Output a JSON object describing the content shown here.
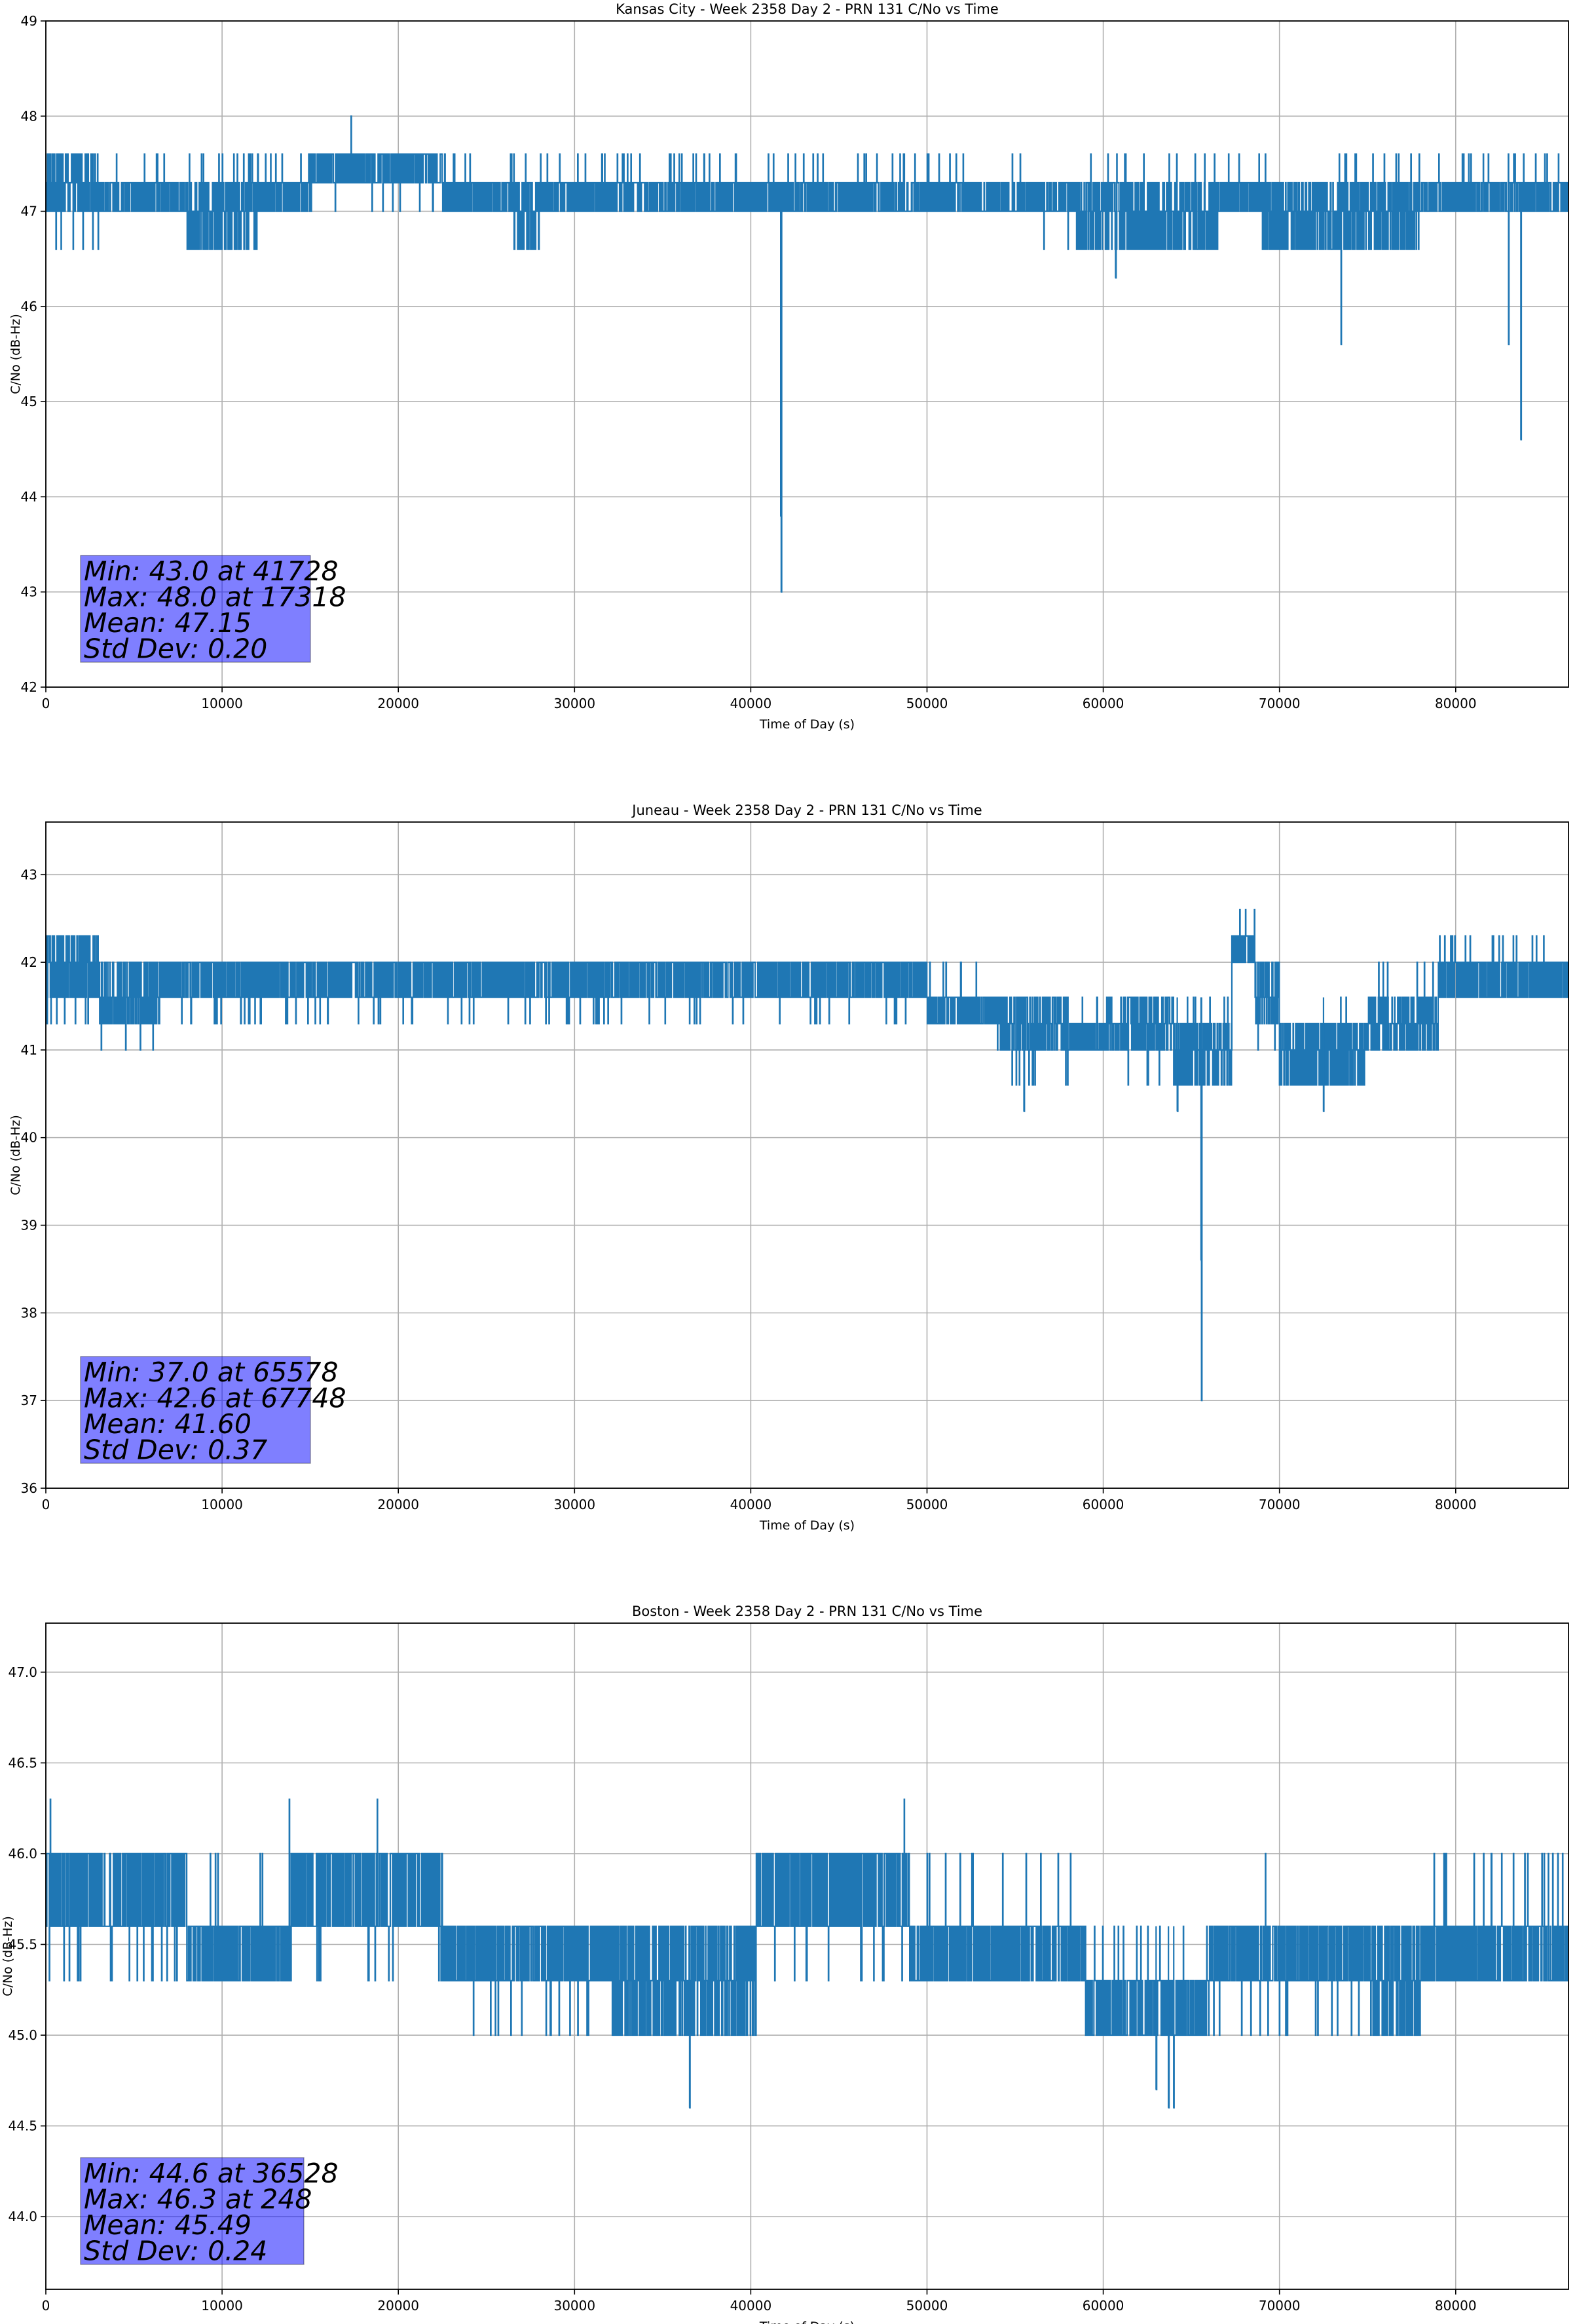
{
  "chart_data": [
    {
      "type": "line",
      "title": "Kansas City - Week 2358 Day 2 - PRN 131 C/No vs Time",
      "xlabel": "Time of Day (s)",
      "ylabel": "C/No (dB-Hz)",
      "xlim": [
        0,
        86400
      ],
      "ylim": [
        42,
        49
      ],
      "xticks": [
        0,
        10000,
        20000,
        30000,
        40000,
        50000,
        60000,
        70000,
        80000
      ],
      "yticks": [
        42,
        43,
        44,
        45,
        46,
        47,
        48,
        49
      ],
      "ytick_labels": [
        "42",
        "43",
        "44",
        "45",
        "46",
        "47",
        "48",
        "49"
      ],
      "grid": true,
      "color": "#1f77b4",
      "stats": [
        "Min: 43.0 at 41728",
        "Max: 48.0 at 17318",
        "Mean: 47.15",
        "Std Dev: 0.20"
      ],
      "segments": [
        {
          "t": [
            0,
            3000
          ],
          "levels": [
            47.0,
            47.3,
            47.6
          ],
          "rare": 46.6
        },
        {
          "t": [
            3000,
            8000
          ],
          "levels": [
            47.0,
            47.3
          ],
          "rare": 47.6
        },
        {
          "t": [
            8000,
            12000
          ],
          "levels": [
            46.6,
            47.0,
            47.3
          ],
          "rare": 47.6
        },
        {
          "t": [
            12000,
            15000
          ],
          "levels": [
            47.0,
            47.3
          ],
          "rare": 47.6
        },
        {
          "t": [
            15000,
            22500
          ],
          "levels": [
            47.3,
            47.6
          ],
          "rare": 47.0
        },
        {
          "t": [
            22500,
            26500
          ],
          "levels": [
            47.0,
            47.3
          ],
          "rare": 47.6
        },
        {
          "t": [
            26500,
            28000
          ],
          "levels": [
            46.6,
            47.0,
            47.3
          ],
          "rare": 47.6
        },
        {
          "t": [
            28000,
            39000
          ],
          "levels": [
            47.0,
            47.3
          ],
          "rare": 47.6
        },
        {
          "t": [
            39000,
            55500
          ],
          "levels": [
            47.0,
            47.3
          ],
          "rare": 47.6
        },
        {
          "t": [
            55500,
            58500
          ],
          "levels": [
            47.0,
            47.3
          ],
          "rare": 46.6
        },
        {
          "t": [
            58500,
            66500
          ],
          "levels": [
            46.6,
            47.0,
            47.3
          ],
          "rare": 47.6
        },
        {
          "t": [
            66500,
            69000
          ],
          "levels": [
            47.0,
            47.3
          ],
          "rare": 47.6
        },
        {
          "t": [
            69000,
            78000
          ],
          "levels": [
            46.6,
            47.0,
            47.3
          ],
          "rare": 47.6
        },
        {
          "t": [
            78000,
            86400
          ],
          "levels": [
            47.0,
            47.3
          ],
          "rare": 47.6
        }
      ],
      "spikes": [
        [
          17318,
          48.0
        ],
        [
          41700,
          43.8
        ],
        [
          41728,
          43.0
        ],
        [
          60700,
          46.3
        ],
        [
          73500,
          45.6
        ],
        [
          83000,
          45.6
        ],
        [
          83700,
          44.6
        ]
      ]
    },
    {
      "type": "line",
      "title": "Juneau - Week 2358 Day 2 - PRN 131 C/No vs Time",
      "xlabel": "Time of Day (s)",
      "ylabel": "C/No (dB-Hz)",
      "xlim": [
        0,
        86400
      ],
      "ylim": [
        36,
        43.6
      ],
      "xticks": [
        0,
        10000,
        20000,
        30000,
        40000,
        50000,
        60000,
        70000,
        80000
      ],
      "yticks": [
        36,
        37,
        38,
        39,
        40,
        41,
        42,
        43
      ],
      "ytick_labels": [
        "36",
        "37",
        "38",
        "39",
        "40",
        "41",
        "42",
        "43"
      ],
      "grid": true,
      "color": "#1f77b4",
      "stats": [
        "Min: 37.0 at 65578",
        "Max: 42.6 at 67748",
        "Mean: 41.60",
        "Std Dev: 0.37"
      ],
      "segments": [
        {
          "t": [
            0,
            3000
          ],
          "levels": [
            41.6,
            42.0,
            42.3
          ],
          "rare": 41.3
        },
        {
          "t": [
            3000,
            6500
          ],
          "levels": [
            41.3,
            41.6,
            42.0
          ],
          "rare": 41.0
        },
        {
          "t": [
            6500,
            50000
          ],
          "levels": [
            41.6,
            42.0
          ],
          "rare": 41.3
        },
        {
          "t": [
            50000,
            54000
          ],
          "levels": [
            41.3,
            41.6
          ],
          "rare": 42.0
        },
        {
          "t": [
            54000,
            58000
          ],
          "levels": [
            41.0,
            41.3,
            41.6
          ],
          "rare": 40.6
        },
        {
          "t": [
            58000,
            61000
          ],
          "levels": [
            41.0,
            41.3
          ],
          "rare": 41.6
        },
        {
          "t": [
            61000,
            64000
          ],
          "levels": [
            41.0,
            41.3,
            41.6
          ],
          "rare": 40.6
        },
        {
          "t": [
            64000,
            67300
          ],
          "levels": [
            40.6,
            41.0,
            41.3
          ],
          "rare": 41.6
        },
        {
          "t": [
            67300,
            68600
          ],
          "levels": [
            42.0,
            42.3
          ],
          "rare": 42.6
        },
        {
          "t": [
            68600,
            70000
          ],
          "levels": [
            41.3,
            41.6,
            42.0
          ],
          "rare": 41.0
        },
        {
          "t": [
            70000,
            75000
          ],
          "levels": [
            40.6,
            41.0,
            41.3
          ],
          "rare": 41.6
        },
        {
          "t": [
            75000,
            79000
          ],
          "levels": [
            41.0,
            41.3,
            41.6
          ],
          "rare": 42.0
        },
        {
          "t": [
            79000,
            86400
          ],
          "levels": [
            41.6,
            42.0
          ],
          "rare": 42.3
        }
      ],
      "spikes": [
        [
          55500,
          40.3
        ],
        [
          64200,
          40.3
        ],
        [
          65550,
          38.6
        ],
        [
          65578,
          37.0
        ],
        [
          67748,
          42.6
        ],
        [
          72500,
          40.3
        ]
      ]
    },
    {
      "type": "line",
      "title": "Boston - Week 2358 Day 2 - PRN 131 C/No vs Time",
      "xlabel": "Time of Day (s)",
      "ylabel": "C/No (dB-Hz)",
      "xlim": [
        0,
        86400
      ],
      "ylim": [
        43.6,
        47.27
      ],
      "xticks": [
        0,
        10000,
        20000,
        30000,
        40000,
        50000,
        60000,
        70000,
        80000
      ],
      "yticks": [
        44.0,
        44.5,
        45.0,
        45.5,
        46.0,
        46.5,
        47.0
      ],
      "ytick_labels": [
        "44.0",
        "44.5",
        "45.0",
        "45.5",
        "46.0",
        "46.5",
        "47.0"
      ],
      "grid": true,
      "color": "#1f77b4",
      "stats": [
        "Min: 44.6 at 36528",
        "Max: 46.3 at 248",
        "Mean: 45.49",
        "Std Dev: 0.24"
      ],
      "segments": [
        {
          "t": [
            0,
            8000
          ],
          "levels": [
            45.6,
            46.0
          ],
          "rare": 45.3
        },
        {
          "t": [
            8000,
            14000
          ],
          "levels": [
            45.3,
            45.6
          ],
          "rare": 46.0
        },
        {
          "t": [
            14000,
            22500
          ],
          "levels": [
            45.6,
            46.0
          ],
          "rare": 45.3
        },
        {
          "t": [
            22500,
            32000
          ],
          "levels": [
            45.3,
            45.6
          ],
          "rare": 45.0
        },
        {
          "t": [
            32000,
            40300
          ],
          "levels": [
            45.0,
            45.3,
            45.6
          ],
          "rare": 45.6
        },
        {
          "t": [
            40300,
            49000
          ],
          "levels": [
            45.6,
            46.0
          ],
          "rare": 45.3
        },
        {
          "t": [
            49000,
            59000
          ],
          "levels": [
            45.3,
            45.6
          ],
          "rare": 46.0
        },
        {
          "t": [
            59000,
            66000
          ],
          "levels": [
            45.0,
            45.3
          ],
          "rare": 45.6
        },
        {
          "t": [
            66000,
            75000
          ],
          "levels": [
            45.3,
            45.6
          ],
          "rare": 45.0
        },
        {
          "t": [
            75000,
            78000
          ],
          "levels": [
            45.0,
            45.3,
            45.6
          ],
          "rare": 45.6
        },
        {
          "t": [
            78000,
            86400
          ],
          "levels": [
            45.3,
            45.6
          ],
          "rare": 46.0
        }
      ],
      "spikes": [
        [
          248,
          46.3
        ],
        [
          13800,
          46.3
        ],
        [
          18800,
          46.3
        ],
        [
          36528,
          44.6
        ],
        [
          48700,
          46.3
        ],
        [
          63000,
          44.7
        ],
        [
          63700,
          44.6
        ],
        [
          64000,
          44.6
        ],
        [
          69200,
          46.0
        ]
      ]
    }
  ]
}
